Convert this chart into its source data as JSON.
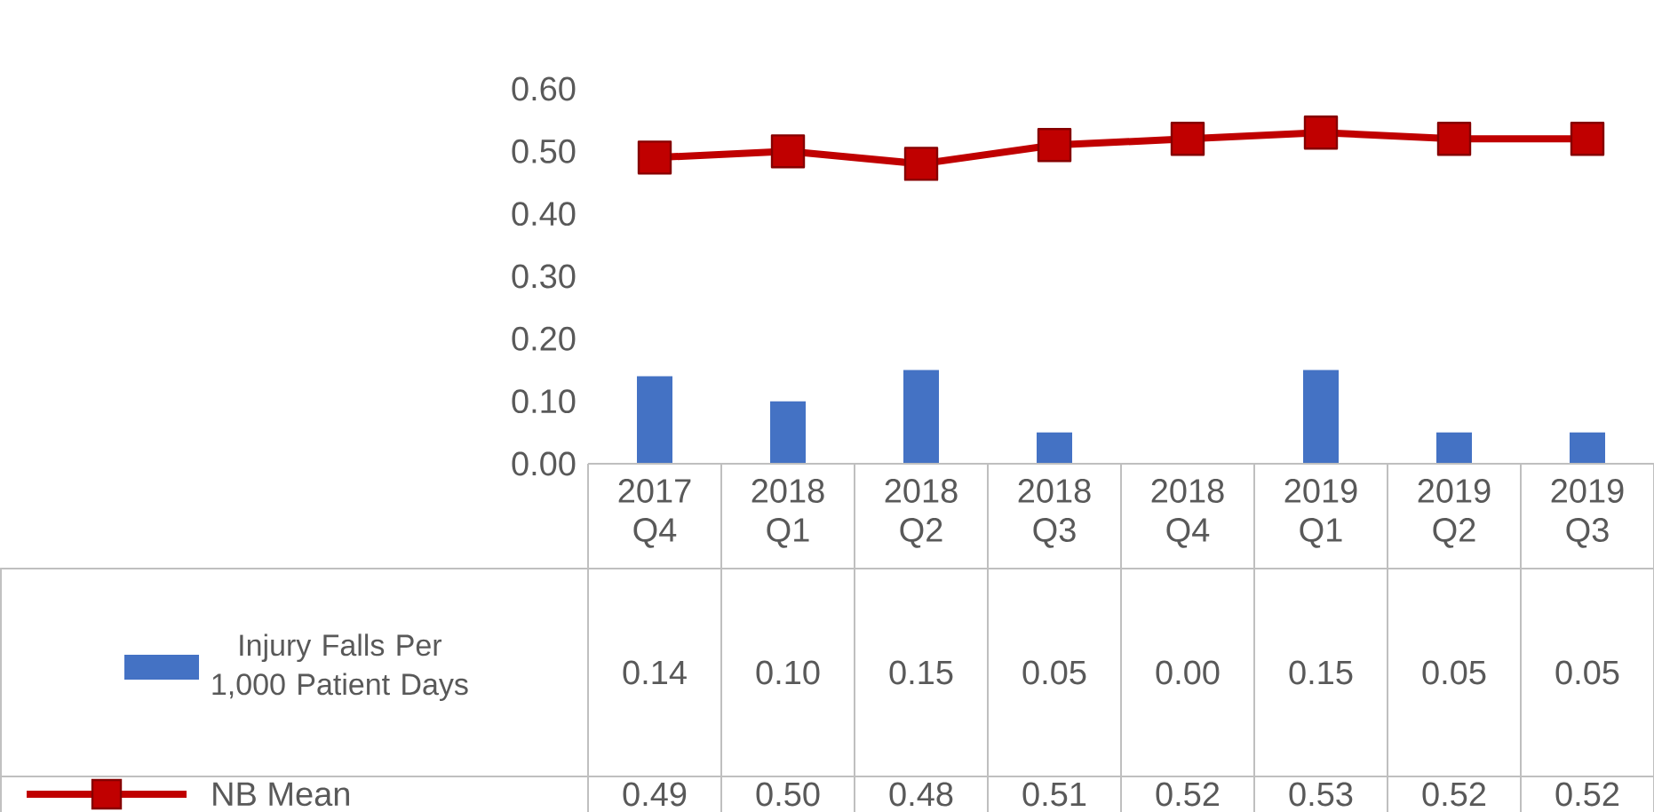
{
  "chart_data": {
    "type": "bar",
    "categories": [
      "2017 Q4",
      "2018 Q1",
      "2018 Q2",
      "2018 Q3",
      "2018 Q4",
      "2019 Q1",
      "2019 Q2",
      "2019 Q3"
    ],
    "series": [
      {
        "name": "Injury Falls Per 1,000 Patient Days",
        "color": "#4472c4",
        "values": [
          0.14,
          0.1,
          0.15,
          0.05,
          0.0,
          0.15,
          0.05,
          0.05
        ],
        "value_labels": [
          "0.14",
          "0.10",
          "0.15",
          "0.05",
          "0.00",
          "0.15",
          "0.05",
          "0.05"
        ]
      },
      {
        "name": "NB Mean",
        "type": "line",
        "color": "#c00000",
        "marker": "square",
        "line_style": "solid",
        "values": [
          0.49,
          0.5,
          0.48,
          0.51,
          0.52,
          0.53,
          0.52,
          0.52
        ],
        "value_labels": [
          "0.49",
          "0.50",
          "0.48",
          "0.51",
          "0.52",
          "0.53",
          "0.52",
          "0.52"
        ]
      }
    ],
    "ylim": [
      0,
      0.6
    ],
    "yticks": [
      {
        "value": 0,
        "label": "0.00"
      },
      {
        "value": 0.1,
        "label": "0.10"
      },
      {
        "value": 0.2,
        "label": "0.20"
      },
      {
        "value": 0.3,
        "label": "0.30"
      },
      {
        "value": 0.4,
        "label": "0.40"
      },
      {
        "value": 0.5,
        "label": "0.50"
      },
      {
        "value": 0.6,
        "label": "0.60"
      }
    ],
    "grid": false,
    "legend": "bottom"
  }
}
